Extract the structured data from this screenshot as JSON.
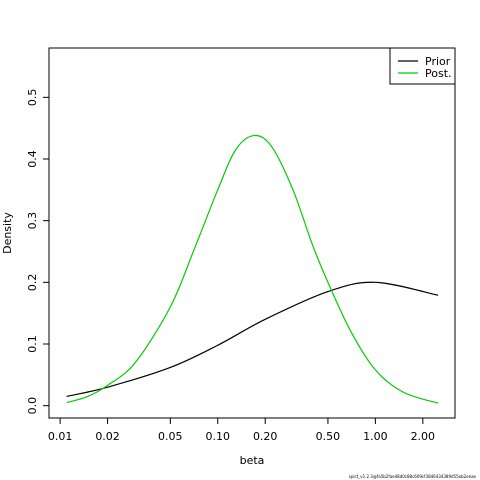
{
  "chart_data": {
    "type": "line",
    "title": "",
    "xlabel": "beta",
    "ylabel": "Density",
    "x_scale": "log",
    "xlim": [
      0.0085,
      3.2
    ],
    "ylim": [
      -0.02,
      0.58
    ],
    "x_ticks": [
      {
        "value": 0.01,
        "label": "0.01"
      },
      {
        "value": 0.02,
        "label": "0.02"
      },
      {
        "value": 0.05,
        "label": "0.05"
      },
      {
        "value": 0.1,
        "label": "0.10"
      },
      {
        "value": 0.2,
        "label": "0.20"
      },
      {
        "value": 0.5,
        "label": "0.50"
      },
      {
        "value": 1.0,
        "label": "1.00"
      },
      {
        "value": 2.0,
        "label": "2.00"
      }
    ],
    "y_ticks": [
      {
        "value": 0.0,
        "label": "0.0"
      },
      {
        "value": 0.1,
        "label": "0.1"
      },
      {
        "value": 0.2,
        "label": "0.2"
      },
      {
        "value": 0.3,
        "label": "0.3"
      },
      {
        "value": 0.4,
        "label": "0.4"
      },
      {
        "value": 0.5,
        "label": "0.5"
      }
    ],
    "legend_position": "top-right",
    "grid": false,
    "series": [
      {
        "name": "Prior",
        "color": "#000000",
        "points": [
          [
            0.011,
            0.015
          ],
          [
            0.02,
            0.03
          ],
          [
            0.05,
            0.062
          ],
          [
            0.1,
            0.098
          ],
          [
            0.2,
            0.14
          ],
          [
            0.5,
            0.185
          ],
          [
            1.0,
            0.2
          ],
          [
            2.5,
            0.179
          ]
        ]
      },
      {
        "name": "Post.",
        "color": "#00cd00",
        "points": [
          [
            0.011,
            0.005
          ],
          [
            0.015,
            0.015
          ],
          [
            0.02,
            0.033
          ],
          [
            0.03,
            0.07
          ],
          [
            0.05,
            0.16
          ],
          [
            0.07,
            0.25
          ],
          [
            0.1,
            0.35
          ],
          [
            0.13,
            0.415
          ],
          [
            0.17,
            0.438
          ],
          [
            0.22,
            0.42
          ],
          [
            0.3,
            0.35
          ],
          [
            0.4,
            0.26
          ],
          [
            0.5,
            0.2
          ],
          [
            0.7,
            0.12
          ],
          [
            1.0,
            0.058
          ],
          [
            1.5,
            0.022
          ],
          [
            2.5,
            0.004
          ]
        ]
      }
    ]
  },
  "footnote": "spict_v1.2.3@fa5b2fae48d0c88c609cf3846434389d55eb2eeae"
}
